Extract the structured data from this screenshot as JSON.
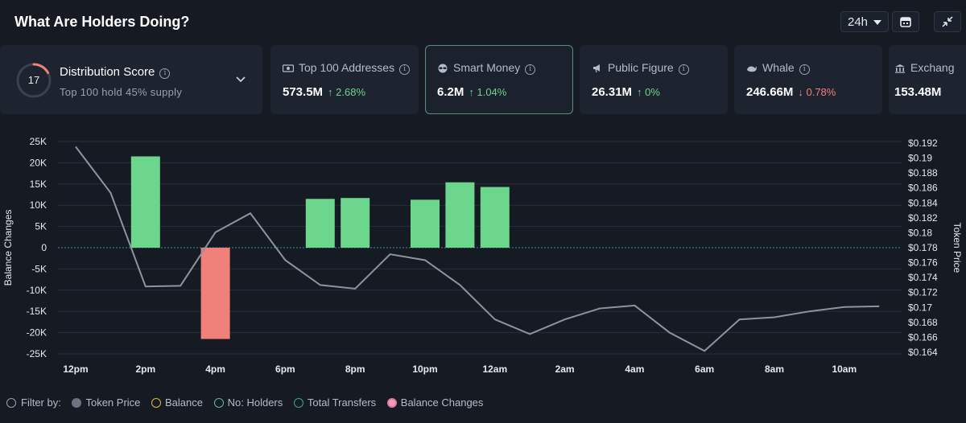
{
  "header": {
    "title": "What Are Holders Doing?",
    "range": "24h"
  },
  "distribution": {
    "score": "17",
    "score_value": 17,
    "label": "Distribution Score",
    "sub": "Top 100 hold 45% supply"
  },
  "cards": [
    {
      "label": "Top 100 Addresses",
      "value": "573.5M",
      "change": "↑ 2.68%",
      "dir": "up",
      "icon": "money-icon"
    },
    {
      "label": "Smart Money",
      "value": "6.2M",
      "change": "↑ 1.04%",
      "dir": "up",
      "icon": "glasses-icon"
    },
    {
      "label": "Public Figure",
      "value": "26.31M",
      "change": "↑ 0%",
      "dir": "up",
      "icon": "megaphone-icon"
    },
    {
      "label": "Whale",
      "value": "246.66M",
      "change": "↓ 0.78%",
      "dir": "down",
      "icon": "whale-icon"
    },
    {
      "label": "Exchang",
      "value": "153.48M",
      "change": "",
      "dir": "up",
      "icon": "bank-icon"
    }
  ],
  "chart_data": {
    "type": "bar",
    "left_axis": {
      "label": "Balance Changes",
      "ticks": [
        "25K",
        "20K",
        "15K",
        "10K",
        "5K",
        "0",
        "-5K",
        "-10K",
        "-15K",
        "-20K",
        "-25K"
      ],
      "range": [
        -25000,
        25000
      ]
    },
    "right_axis": {
      "label": "Token Price",
      "ticks": [
        "$0.192",
        "$0.19",
        "$0.188",
        "$0.186",
        "$0.184",
        "$0.182",
        "$0.18",
        "$0.178",
        "$0.176",
        "$0.174",
        "$0.172",
        "$0.17",
        "$0.168",
        "$0.166",
        "$0.164"
      ],
      "range": [
        0.1635,
        0.1925
      ]
    },
    "x_labels": [
      "12pm",
      "2pm",
      "4pm",
      "6pm",
      "8pm",
      "10pm",
      "12am",
      "2am",
      "4am",
      "6am",
      "8am",
      "10am"
    ],
    "bars": [
      {
        "h": 2,
        "value": 21500
      },
      {
        "h": 4,
        "value": -21500
      },
      {
        "h": 7,
        "value": 11500
      },
      {
        "h": 8,
        "value": 11700
      },
      {
        "h": 10,
        "value": 11300
      },
      {
        "h": 11,
        "value": 15400
      },
      {
        "h": 12,
        "value": 14300
      }
    ],
    "series": [
      {
        "name": "Token Price",
        "points": [
          [
            0,
            0.1918
          ],
          [
            1,
            0.1855
          ],
          [
            2,
            0.1727
          ],
          [
            3,
            0.1728
          ],
          [
            4,
            0.1801
          ],
          [
            5,
            0.1827
          ],
          [
            6,
            0.1763
          ],
          [
            7,
            0.1729
          ],
          [
            8,
            0.1724
          ],
          [
            9,
            0.1771
          ],
          [
            10,
            0.1763
          ],
          [
            11,
            0.1729
          ],
          [
            12,
            0.1682
          ],
          [
            13,
            0.1662
          ],
          [
            14,
            0.1682
          ],
          [
            15,
            0.1697
          ],
          [
            16,
            0.1701
          ],
          [
            17,
            0.1664
          ],
          [
            18,
            0.1639
          ],
          [
            19,
            0.1682
          ],
          [
            20,
            0.1685
          ],
          [
            21,
            0.1693
          ],
          [
            22,
            0.1699
          ],
          [
            23,
            0.17
          ]
        ]
      }
    ]
  },
  "legend": {
    "filter_label": "Filter by:",
    "items": [
      {
        "label": "Token Price",
        "color": "#6b7480"
      },
      {
        "label": "Balance",
        "color": "#e2b93b"
      },
      {
        "label": "No: Holders",
        "color": "#4fc1a6"
      },
      {
        "label": "Total Transfers",
        "color": "#3fa58a"
      },
      {
        "label": "Balance Changes",
        "color": "#f39bb8"
      }
    ]
  },
  "colors": {
    "positive": "#6bd68c",
    "negative": "#f0807a",
    "price_line": "#8c94a0",
    "accent_ring": "#f0807a"
  }
}
